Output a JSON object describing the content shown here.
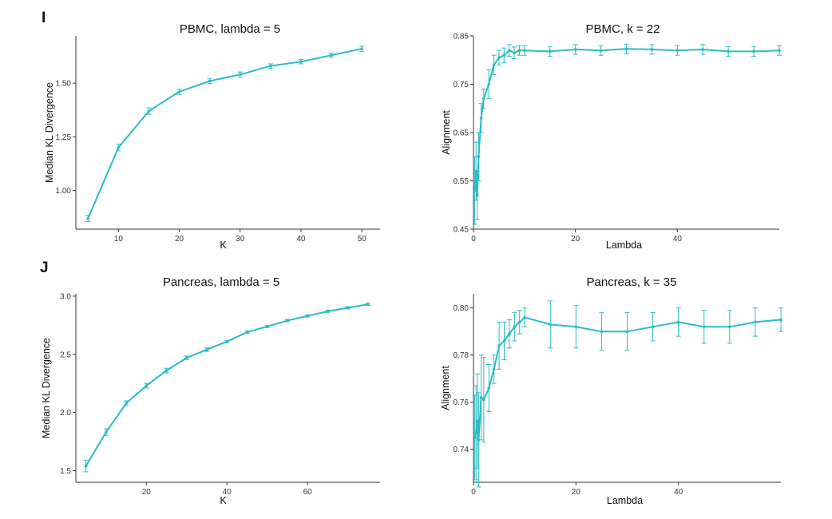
{
  "panel_labels": [
    "I",
    "J"
  ],
  "colors": {
    "series": "#2bbcc4",
    "axis": "#333333"
  },
  "chart_data": [
    {
      "type": "line",
      "title": "PBMC, lambda = 5",
      "xlabel": "K",
      "ylabel": "Median KL Divergence",
      "xlim": [
        3,
        53
      ],
      "ylim": [
        0.82,
        1.72
      ],
      "xticks": [
        10,
        20,
        30,
        40,
        50
      ],
      "yticks": [
        1.0,
        1.25,
        1.5
      ],
      "ytick_labels": [
        "1.00",
        "1.25",
        "1.50"
      ],
      "series": [
        {
          "x": [
            5,
            10,
            15,
            20,
            25,
            30,
            35,
            40,
            45,
            50
          ],
          "y": [
            0.87,
            1.2,
            1.37,
            1.46,
            1.51,
            1.54,
            1.58,
            1.6,
            1.63,
            1.66
          ],
          "err": [
            0.015,
            0.015,
            0.015,
            0.012,
            0.012,
            0.012,
            0.01,
            0.01,
            0.01,
            0.012
          ]
        }
      ]
    },
    {
      "type": "line",
      "title": "PBMC, k = 22",
      "xlabel": "Lambda",
      "ylabel": "Alignment",
      "xlim": [
        0,
        60
      ],
      "ylim": [
        0.45,
        0.85
      ],
      "xticks": [
        0,
        20,
        40
      ],
      "yticks": [
        0.45,
        0.55,
        0.65,
        0.75,
        0.85
      ],
      "ytick_labels": [
        "0.45",
        "0.55",
        "0.65",
        "0.75",
        "0.85"
      ],
      "series": [
        {
          "x": [
            0.25,
            0.5,
            0.75,
            1,
            1.5,
            2,
            3,
            4,
            5,
            6,
            7,
            8,
            9,
            10,
            15,
            20,
            25,
            30,
            35,
            40,
            45,
            50,
            55,
            60
          ],
          "y": [
            0.53,
            0.57,
            0.52,
            0.6,
            0.68,
            0.72,
            0.75,
            0.79,
            0.805,
            0.81,
            0.82,
            0.815,
            0.82,
            0.82,
            0.818,
            0.822,
            0.82,
            0.823,
            0.822,
            0.82,
            0.822,
            0.818,
            0.818,
            0.82
          ],
          "err": [
            0.07,
            0.06,
            0.05,
            0.05,
            0.03,
            0.02,
            0.03,
            0.02,
            0.015,
            0.015,
            0.012,
            0.012,
            0.01,
            0.01,
            0.01,
            0.01,
            0.01,
            0.01,
            0.01,
            0.01,
            0.01,
            0.01,
            0.01,
            0.01
          ]
        }
      ]
    },
    {
      "type": "line",
      "title": "Pancreas, lambda = 5",
      "xlabel": "K",
      "ylabel": "Median KL Divergence",
      "xlim": [
        2.5,
        78
      ],
      "ylim": [
        1.4,
        3.02
      ],
      "xticks": [
        20,
        40,
        60
      ],
      "yticks": [
        1.5,
        2.0,
        2.5,
        3.0
      ],
      "ytick_labels": [
        "1.5",
        "2.0",
        "2.5",
        "3.0"
      ],
      "series": [
        {
          "x": [
            5,
            10,
            15,
            20,
            25,
            30,
            35,
            40,
            45,
            50,
            55,
            60,
            65,
            70,
            75
          ],
          "y": [
            1.54,
            1.83,
            2.08,
            2.23,
            2.36,
            2.47,
            2.54,
            2.61,
            2.69,
            2.74,
            2.79,
            2.83,
            2.87,
            2.9,
            2.93
          ],
          "err": [
            0.05,
            0.03,
            0.02,
            0.02,
            0.02,
            0.015,
            0.015,
            0.01,
            0.01,
            0.01,
            0.01,
            0.01,
            0.01,
            0.01,
            0.01
          ]
        }
      ]
    },
    {
      "type": "line",
      "title": "Pancreas, k = 35",
      "xlabel": "Lambda",
      "ylabel": "Alignment",
      "xlim": [
        0,
        60
      ],
      "ylim": [
        0.726,
        0.806
      ],
      "xticks": [
        0,
        20,
        40
      ],
      "yticks": [
        0.74,
        0.76,
        0.78,
        0.8
      ],
      "ytick_labels": [
        "0.74",
        "0.76",
        "0.78",
        "0.80"
      ],
      "series": [
        {
          "x": [
            0.25,
            0.5,
            0.75,
            1,
            1.5,
            2,
            3,
            4,
            5,
            6,
            7,
            8,
            9,
            10,
            15,
            20,
            25,
            30,
            35,
            40,
            45,
            50,
            55,
            60
          ],
          "y": [
            0.745,
            0.747,
            0.752,
            0.744,
            0.762,
            0.761,
            0.766,
            0.774,
            0.784,
            0.786,
            0.789,
            0.792,
            0.794,
            0.796,
            0.793,
            0.792,
            0.79,
            0.79,
            0.792,
            0.794,
            0.792,
            0.792,
            0.794,
            0.795
          ],
          "err": [
            0.018,
            0.02,
            0.02,
            0.02,
            0.018,
            0.018,
            0.01,
            0.006,
            0.01,
            0.008,
            0.006,
            0.006,
            0.005,
            0.004,
            0.01,
            0.009,
            0.008,
            0.008,
            0.006,
            0.006,
            0.007,
            0.007,
            0.006,
            0.005
          ]
        }
      ]
    }
  ]
}
